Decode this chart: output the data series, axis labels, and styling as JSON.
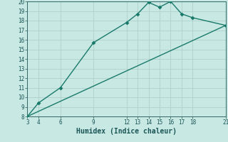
{
  "xlabel": "Humidex (Indice chaleur)",
  "line1_x": [
    3,
    4,
    6,
    9,
    12,
    13,
    14,
    15,
    16,
    17,
    18,
    21
  ],
  "line1_y": [
    8.0,
    9.4,
    11.0,
    15.7,
    17.8,
    18.7,
    19.9,
    19.4,
    20.0,
    18.7,
    18.3,
    17.5
  ],
  "line2_x": [
    3,
    21
  ],
  "line2_y": [
    8.0,
    17.5
  ],
  "line_color": "#1a7a6a",
  "bg_color": "#c8e8e4",
  "grid_color": "#b0d0cc",
  "xlim": [
    3,
    21
  ],
  "ylim": [
    8,
    20
  ],
  "xticks": [
    3,
    4,
    6,
    9,
    12,
    13,
    14,
    15,
    16,
    17,
    18,
    21
  ],
  "yticks": [
    8,
    9,
    10,
    11,
    12,
    13,
    14,
    15,
    16,
    17,
    18,
    19,
    20
  ],
  "marker_size": 3,
  "line_width": 1.0
}
